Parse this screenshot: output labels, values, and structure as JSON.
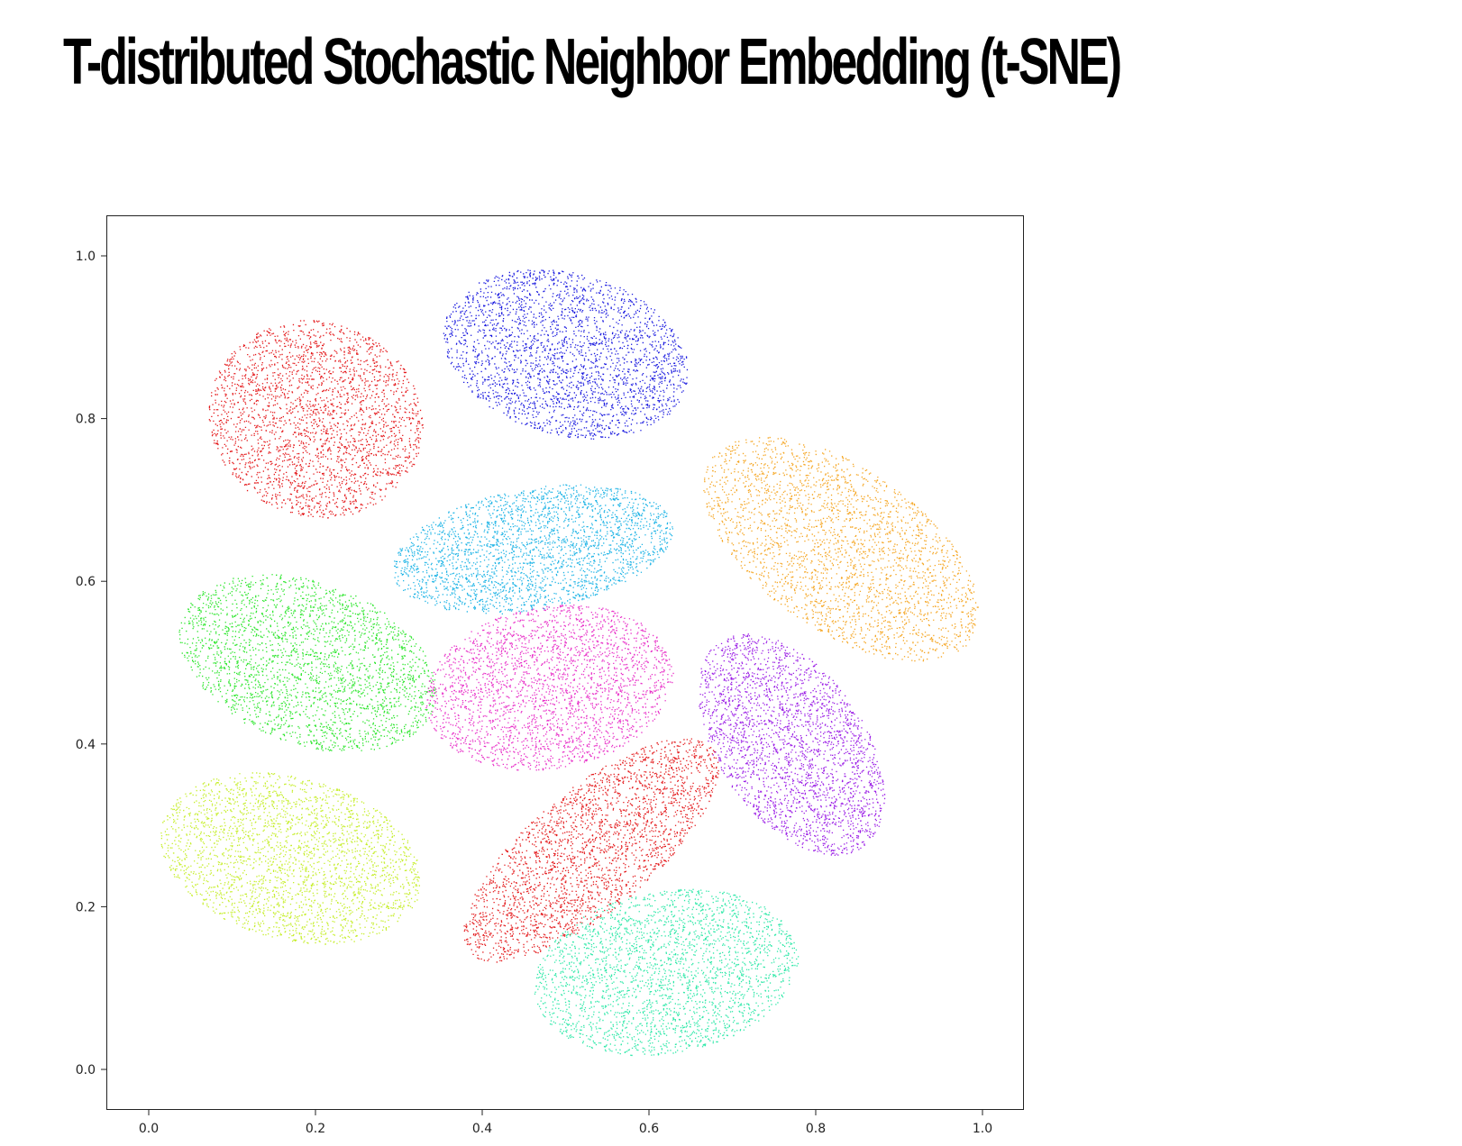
{
  "title": "T-distributed Stochastic Neighbor Embedding (t-SNE)",
  "chart_data": {
    "type": "scatter",
    "title": "T-distributed Stochastic Neighbor Embedding (t-SNE)",
    "xlabel": "",
    "ylabel": "",
    "xlim": [
      -0.05,
      1.05
    ],
    "ylim": [
      -0.05,
      1.05
    ],
    "x_ticks": [
      "0.0",
      "0.2",
      "0.4",
      "0.6",
      "0.8",
      "1.0"
    ],
    "y_ticks": [
      "0.0",
      "0.2",
      "0.4",
      "0.6",
      "0.8",
      "1.0"
    ],
    "grid": false,
    "legend": null,
    "clusters": [
      {
        "name": "blue",
        "color": "#1a1adf",
        "center": [
          0.5,
          0.88
        ],
        "rx": 0.15,
        "ry": 0.1,
        "rotation": -15
      },
      {
        "name": "red-top",
        "color": "#e41a1c",
        "center": [
          0.2,
          0.8
        ],
        "rx": 0.13,
        "ry": 0.12,
        "rotation": -20
      },
      {
        "name": "cyan",
        "color": "#1fb4e6",
        "center": [
          0.46,
          0.64
        ],
        "rx": 0.17,
        "ry": 0.075,
        "rotation": 10
      },
      {
        "name": "orange",
        "color": "#f5a623",
        "center": [
          0.83,
          0.64
        ],
        "rx": 0.19,
        "ry": 0.1,
        "rotation": -35
      },
      {
        "name": "green",
        "color": "#2ee62e",
        "center": [
          0.19,
          0.5
        ],
        "rx": 0.16,
        "ry": 0.1,
        "rotation": -20
      },
      {
        "name": "magenta",
        "color": "#e830c8",
        "center": [
          0.48,
          0.47
        ],
        "rx": 0.15,
        "ry": 0.1,
        "rotation": 10
      },
      {
        "name": "purple",
        "color": "#9b1ee6",
        "center": [
          0.77,
          0.4
        ],
        "rx": 0.15,
        "ry": 0.09,
        "rotation": -55
      },
      {
        "name": "yellow-green",
        "color": "#c6ee2a",
        "center": [
          0.17,
          0.26
        ],
        "rx": 0.16,
        "ry": 0.1,
        "rotation": -15
      },
      {
        "name": "red-bottom",
        "color": "#e41a1c",
        "center": [
          0.53,
          0.27
        ],
        "rx": 0.19,
        "ry": 0.075,
        "rotation": 40
      },
      {
        "name": "teal",
        "color": "#2ee8a8",
        "center": [
          0.62,
          0.12
        ],
        "rx": 0.16,
        "ry": 0.1,
        "rotation": 10
      }
    ]
  }
}
